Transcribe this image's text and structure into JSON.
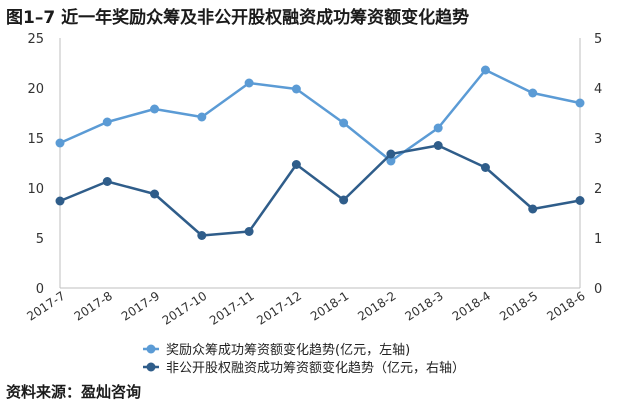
{
  "title": "图1–7  近一年奖励众筹及非公开股权融资成功筹资额变化趋势",
  "source": "资料来源：盈灿咨询",
  "chart_data": {
    "type": "line",
    "categories": [
      "2017-7",
      "2017-8",
      "2017-9",
      "2017-10",
      "2017-11",
      "2017-12",
      "2018-1",
      "2018-2",
      "2018-3",
      "2018-4",
      "2018-5",
      "2018-6"
    ],
    "y_left": {
      "ylim": [
        0,
        25
      ],
      "ticks": [
        0,
        5,
        10,
        15,
        20,
        25
      ]
    },
    "y_right": {
      "ylim": [
        0,
        5
      ],
      "ticks": [
        0,
        1,
        2,
        3,
        4,
        5
      ]
    },
    "grid": false,
    "legend_position": "bottom",
    "series": [
      {
        "name": "奖励众筹成功筹资额变化趋势(亿元，左轴)",
        "axis": "left",
        "color": "#5b9bd5",
        "values": [
          14.5,
          16.6,
          17.9,
          17.1,
          20.5,
          19.9,
          16.5,
          12.7,
          16.0,
          21.8,
          19.5,
          18.5
        ]
      },
      {
        "name": "非公开股权融资成功筹资额变化趋势（亿元，右轴）",
        "axis": "right",
        "color": "#2f5d8a",
        "values": [
          1.74,
          2.13,
          1.88,
          1.05,
          1.13,
          2.47,
          1.76,
          2.68,
          2.85,
          2.41,
          1.58,
          1.75
        ]
      }
    ]
  }
}
